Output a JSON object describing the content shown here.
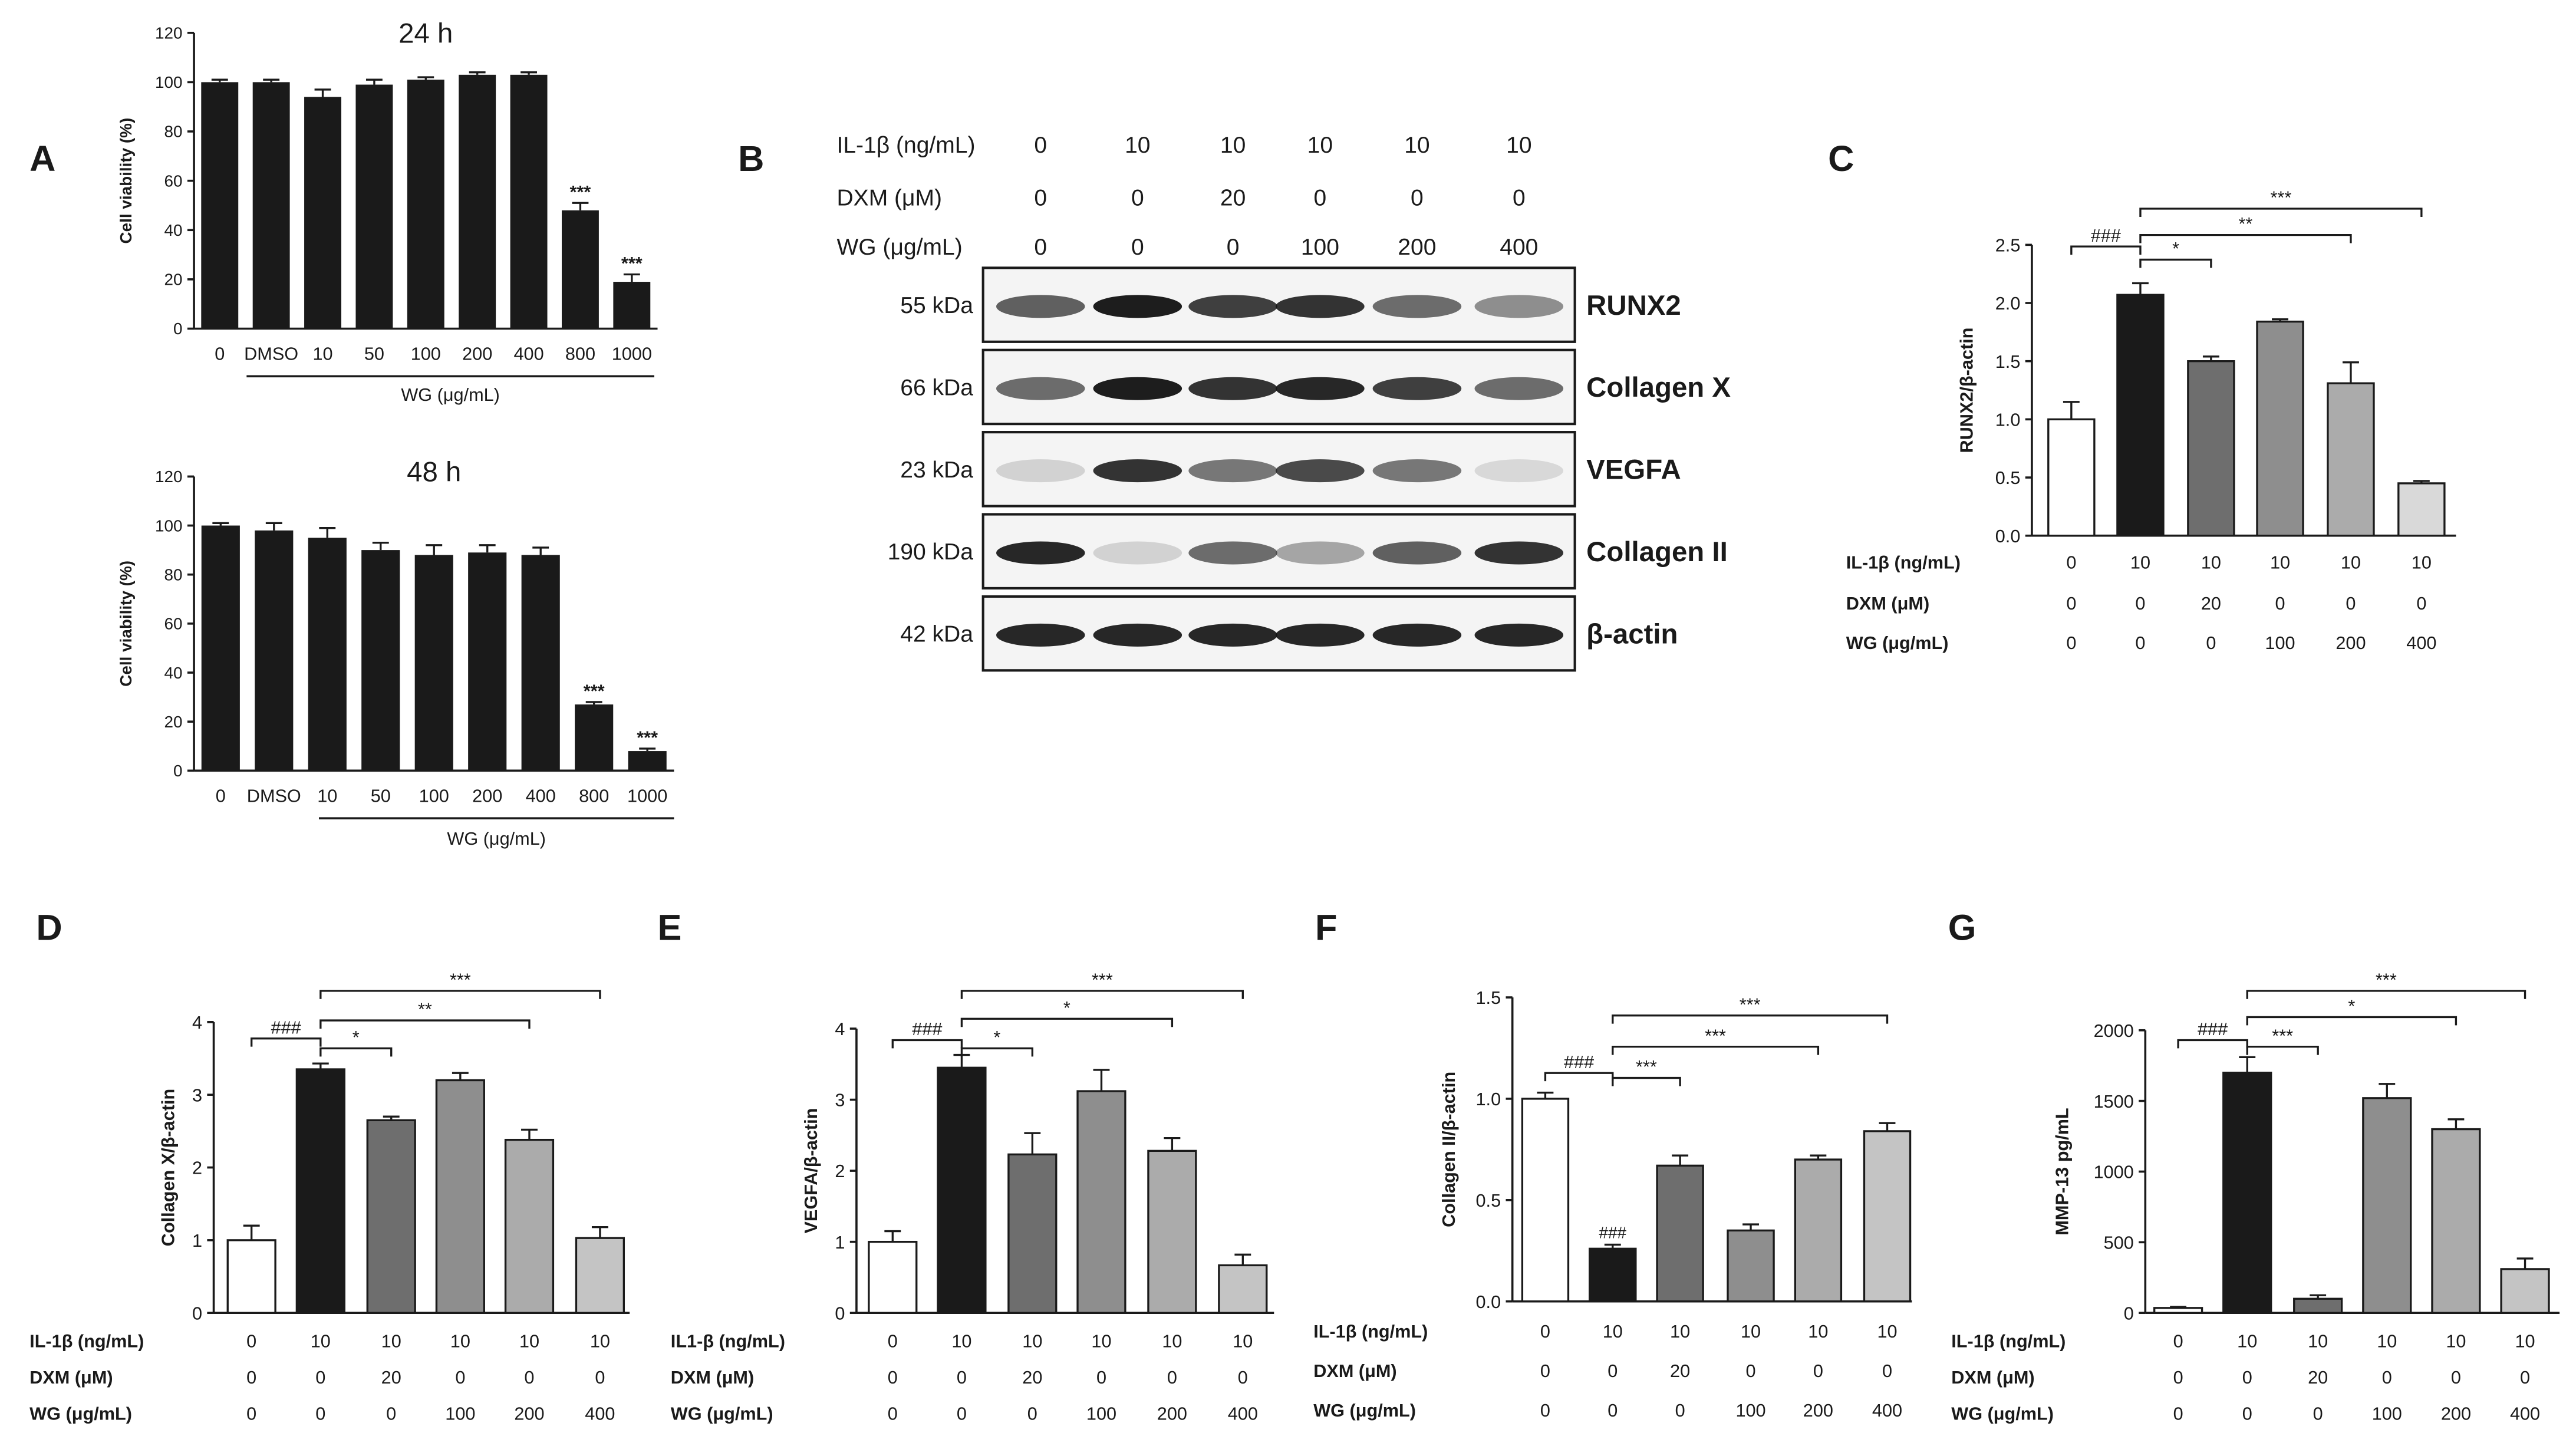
{
  "panel_letters": [
    "A",
    "B",
    "C",
    "D",
    "E",
    "F",
    "G"
  ],
  "panel_a": [
    {
      "title": "24 h",
      "ylabel": "Cell viability (%)",
      "yticks": [
        "0",
        "20",
        "40",
        "60",
        "80",
        "100",
        "120"
      ],
      "xlabel": "WG (μg/mL)",
      "underline_start": "DMSO"
    },
    {
      "title": "48 h",
      "ylabel": "Cell viability (%)",
      "yticks": [
        "0",
        "20",
        "40",
        "60",
        "80",
        "100",
        "120"
      ],
      "xlabel": "WG (μg/mL)",
      "underline_start": "10"
    }
  ],
  "blot": {
    "treatment_rows": [
      {
        "label": "IL-1β (ng/mL)",
        "values": [
          "0",
          "10",
          "10",
          "10",
          "10",
          "10"
        ]
      },
      {
        "label": "DXM (μM)",
        "values": [
          "0",
          "0",
          "20",
          "0",
          "0",
          "0"
        ]
      },
      {
        "label": "WG (μg/mL)",
        "values": [
          "0",
          "0",
          "0",
          "100",
          "200",
          "400"
        ]
      }
    ],
    "bands": [
      {
        "kda": "55 kDa",
        "protein": "RUNX2",
        "intensity": [
          0.65,
          0.95,
          0.8,
          0.85,
          0.6,
          0.45
        ]
      },
      {
        "kda": "66 kDa",
        "protein": "Collagen X",
        "intensity": [
          0.6,
          0.95,
          0.85,
          0.9,
          0.8,
          0.6
        ]
      },
      {
        "kda": "23 kDa",
        "protein": "VEGFA",
        "intensity": [
          0.15,
          0.85,
          0.55,
          0.75,
          0.55,
          0.12
        ]
      },
      {
        "kda": "190 kDa",
        "protein": "Collagen II",
        "intensity": [
          0.9,
          0.15,
          0.6,
          0.35,
          0.65,
          0.85
        ]
      },
      {
        "kda": "42 kDa",
        "protein": "β-actin",
        "intensity": [
          0.9,
          0.9,
          0.9,
          0.9,
          0.9,
          0.9
        ]
      }
    ]
  },
  "bar_panels": [
    {
      "ylabel": "RUNX2/β-actin",
      "yticks": [
        "0.0",
        "0.5",
        "1.0",
        "1.5",
        "2.0",
        "2.5"
      ],
      "row_labels": [
        "IL-1β (ng/mL)",
        "DXM (μM)",
        "WG (μg/mL)"
      ],
      "hash_label": "###"
    },
    {
      "ylabel": "Collagen X/β-actin",
      "yticks": [
        "0",
        "1",
        "2",
        "3",
        "4"
      ],
      "row_labels": [
        "IL-1β (ng/mL)",
        "DXM (μM)",
        "WG (μg/mL)"
      ],
      "hash_label": "###"
    },
    {
      "ylabel": "VEGFA/β-actin",
      "yticks": [
        "0",
        "1",
        "2",
        "3",
        "4"
      ],
      "row_labels": [
        "IL1-β (ng/mL)",
        "DXM (μM)",
        "WG (μg/mL)"
      ],
      "hash_label": "###"
    },
    {
      "ylabel": "Collagen II/β-actin",
      "yticks": [
        "0.0",
        "0.5",
        "1.0",
        "1.5"
      ],
      "row_labels": [
        "IL-1β (ng/mL)",
        "DXM (μM)",
        "WG (μg/mL)"
      ],
      "hash_label": "###"
    },
    {
      "ylabel": "MMP-13 pg/mL",
      "yticks": [
        "0",
        "500",
        "1000",
        "1500",
        "2000"
      ],
      "row_labels": [
        "IL-1β (ng/mL)",
        "DXM (μM)",
        "WG (μg/mL)"
      ],
      "hash_label": "###"
    }
  ],
  "chart_data": [
    {
      "panel": "A",
      "type": "bar",
      "title": "24 h",
      "xlabel": "WG (μg/mL)",
      "ylabel": "Cell viability (%)",
      "ylim": [
        0,
        120
      ],
      "categories": [
        "0",
        "DMSO",
        "10",
        "50",
        "100",
        "200",
        "400",
        "800",
        "1000"
      ],
      "values": [
        100,
        100,
        94,
        99,
        101,
        103,
        103,
        48,
        19
      ],
      "errors": [
        1,
        1,
        3,
        2,
        1,
        1,
        1,
        3,
        3
      ],
      "annotations": [
        "",
        "",
        "",
        "",
        "",
        "",
        "",
        "***",
        "***"
      ],
      "bar_colors": [
        "#1a1a1a"
      ]
    },
    {
      "panel": "A",
      "type": "bar",
      "title": "48 h",
      "xlabel": "WG (μg/mL)",
      "ylabel": "Cell viability (%)",
      "ylim": [
        0,
        120
      ],
      "categories": [
        "0",
        "DMSO",
        "10",
        "50",
        "100",
        "200",
        "400",
        "800",
        "1000"
      ],
      "values": [
        100,
        98,
        95,
        90,
        88,
        89,
        88,
        27,
        8
      ],
      "errors": [
        1,
        3,
        4,
        3,
        4,
        3,
        3,
        1,
        1
      ],
      "annotations": [
        "",
        "",
        "",
        "",
        "",
        "",
        "",
        "***",
        "***"
      ],
      "bar_colors": [
        "#1a1a1a"
      ]
    },
    {
      "panel": "C",
      "type": "bar",
      "ylabel": "RUNX2/β-actin",
      "ylim": [
        0,
        2.5
      ],
      "treatments": {
        "IL-1β (ng/mL)": [
          "0",
          "10",
          "10",
          "10",
          "10",
          "10"
        ],
        "DXM (μM)": [
          "0",
          "0",
          "20",
          "0",
          "0",
          "0"
        ],
        "WG (μg/mL)": [
          "0",
          "0",
          "0",
          "100",
          "200",
          "400"
        ]
      },
      "values": [
        1.0,
        2.07,
        1.5,
        1.84,
        1.31,
        0.45
      ],
      "errors": [
        0.15,
        0.1,
        0.04,
        0.02,
        0.18,
        0.02
      ],
      "bar_colors": [
        "#ffffff",
        "#1a1a1a",
        "#6e6e6e",
        "#8e8e8e",
        "#ababab",
        "#d9d9d9"
      ],
      "brackets": [
        {
          "from": 0,
          "to": 1,
          "label": "###"
        },
        {
          "from": 1,
          "to": 2,
          "label": "*"
        },
        {
          "from": 1,
          "to": 4,
          "label": "**"
        },
        {
          "from": 1,
          "to": 5,
          "label": "***"
        }
      ]
    },
    {
      "panel": "D",
      "type": "bar",
      "ylabel": "Collagen X/β-actin",
      "ylim": [
        0,
        4
      ],
      "treatments": {
        "IL-1β (ng/mL)": [
          "0",
          "10",
          "10",
          "10",
          "10",
          "10"
        ],
        "DXM (μM)": [
          "0",
          "0",
          "20",
          "0",
          "0",
          "0"
        ],
        "WG (μg/mL)": [
          "0",
          "0",
          "0",
          "100",
          "200",
          "400"
        ]
      },
      "values": [
        1.0,
        3.35,
        2.65,
        3.2,
        2.38,
        1.03
      ],
      "errors": [
        0.2,
        0.08,
        0.05,
        0.1,
        0.14,
        0.15
      ],
      "bar_colors": [
        "#ffffff",
        "#1a1a1a",
        "#6e6e6e",
        "#8e8e8e",
        "#ababab",
        "#c4c4c4"
      ],
      "brackets": [
        {
          "from": 0,
          "to": 1,
          "label": "###"
        },
        {
          "from": 1,
          "to": 2,
          "label": "*"
        },
        {
          "from": 1,
          "to": 4,
          "label": "**"
        },
        {
          "from": 1,
          "to": 5,
          "label": "***"
        }
      ]
    },
    {
      "panel": "E",
      "type": "bar",
      "ylabel": "VEGFA/β-actin",
      "ylim": [
        0,
        4
      ],
      "treatments": {
        "IL1-β (ng/mL)": [
          "0",
          "10",
          "10",
          "10",
          "10",
          "10"
        ],
        "DXM (μM)": [
          "0",
          "0",
          "20",
          "0",
          "0",
          "0"
        ],
        "WG (μg/mL)": [
          "0",
          "0",
          "0",
          "100",
          "200",
          "400"
        ]
      },
      "values": [
        1.0,
        3.45,
        2.23,
        3.12,
        2.28,
        0.67
      ],
      "errors": [
        0.15,
        0.18,
        0.3,
        0.3,
        0.18,
        0.15
      ],
      "bar_colors": [
        "#ffffff",
        "#1a1a1a",
        "#6e6e6e",
        "#8e8e8e",
        "#ababab",
        "#c4c4c4"
      ],
      "brackets": [
        {
          "from": 0,
          "to": 1,
          "label": "###"
        },
        {
          "from": 1,
          "to": 2,
          "label": "*"
        },
        {
          "from": 1,
          "to": 4,
          "label": "*"
        },
        {
          "from": 1,
          "to": 5,
          "label": "***"
        }
      ]
    },
    {
      "panel": "F",
      "type": "bar",
      "ylabel": "Collagen II/β-actin",
      "ylim": [
        0,
        1.5
      ],
      "treatments": {
        "IL-1β (ng/mL)": [
          "0",
          "10",
          "10",
          "10",
          "10",
          "10"
        ],
        "DXM (μM)": [
          "0",
          "0",
          "20",
          "0",
          "0",
          "0"
        ],
        "WG (μg/mL)": [
          "0",
          "0",
          "0",
          "100",
          "200",
          "400"
        ]
      },
      "values": [
        1.0,
        0.26,
        0.67,
        0.35,
        0.7,
        0.84
      ],
      "errors": [
        0.03,
        0.02,
        0.05,
        0.03,
        0.02,
        0.04
      ],
      "bar_colors": [
        "#ffffff",
        "#1a1a1a",
        "#6e6e6e",
        "#8e8e8e",
        "#ababab",
        "#c4c4c4"
      ],
      "annotations": [
        "",
        "###",
        "",
        "",
        "",
        ""
      ],
      "brackets": [
        {
          "from": 0,
          "to": 1,
          "label": "###"
        },
        {
          "from": 1,
          "to": 2,
          "label": "***"
        },
        {
          "from": 1,
          "to": 4,
          "label": "***"
        },
        {
          "from": 1,
          "to": 5,
          "label": "***"
        }
      ]
    },
    {
      "panel": "G",
      "type": "bar",
      "ylabel": "MMP-13 pg/mL",
      "ylim": [
        0,
        2000
      ],
      "treatments": {
        "IL-1β (ng/mL)": [
          "0",
          "10",
          "10",
          "10",
          "10",
          "10"
        ],
        "DXM (μM)": [
          "0",
          "0",
          "20",
          "0",
          "0",
          "0"
        ],
        "WG (μg/mL)": [
          "0",
          "0",
          "0",
          "100",
          "200",
          "400"
        ]
      },
      "values": [
        35,
        1700,
        100,
        1520,
        1300,
        310
      ],
      "errors": [
        8,
        110,
        25,
        100,
        70,
        75
      ],
      "bar_colors": [
        "#ffffff",
        "#1a1a1a",
        "#6e6e6e",
        "#8e8e8e",
        "#ababab",
        "#c4c4c4"
      ],
      "brackets": [
        {
          "from": 0,
          "to": 1,
          "label": "###"
        },
        {
          "from": 1,
          "to": 2,
          "label": "***"
        },
        {
          "from": 1,
          "to": 4,
          "label": "*"
        },
        {
          "from": 1,
          "to": 5,
          "label": "***"
        }
      ]
    }
  ]
}
